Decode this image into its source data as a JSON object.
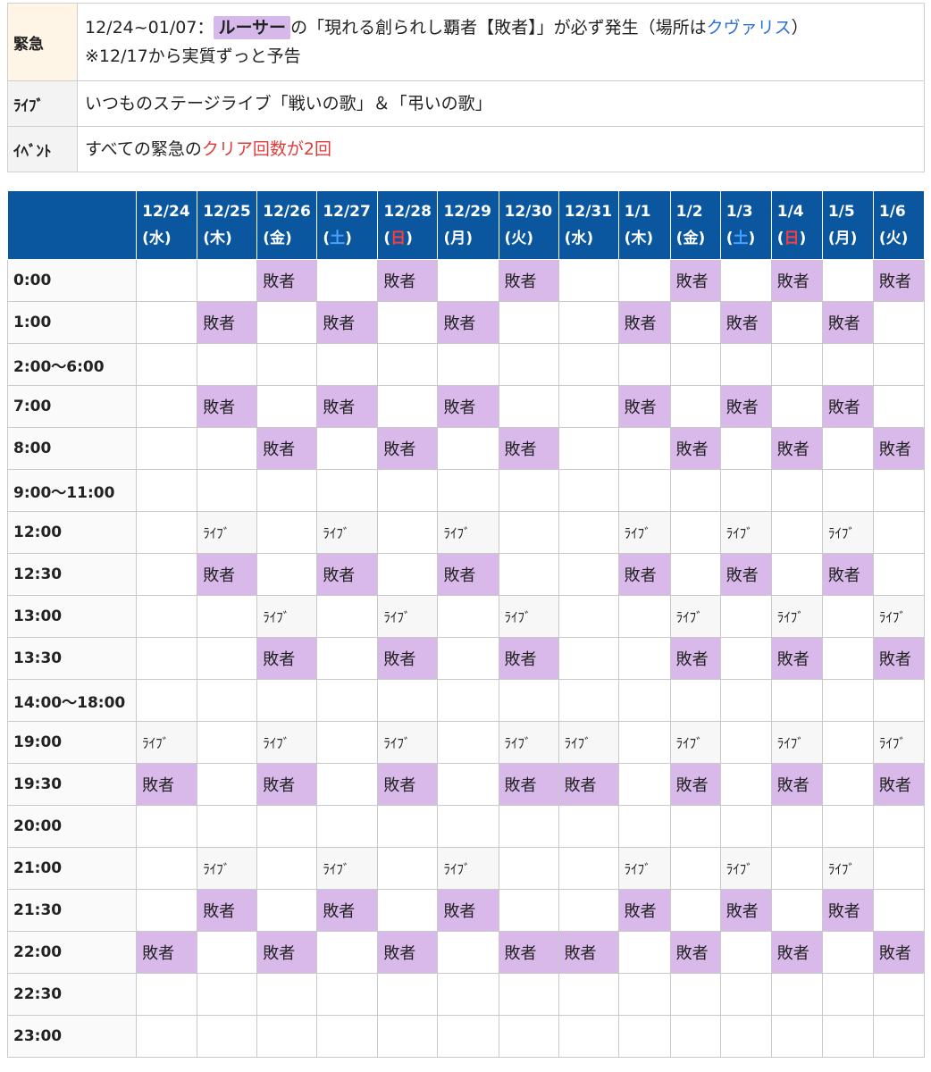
{
  "info": {
    "emergency": {
      "label": "緊急",
      "date_range": "12/24~01/07：",
      "boss": "ルーサー",
      "text_mid": "の「現れる創られし覇者【敗者】」が必ず発生（場所は",
      "location": "クヴァリス",
      "text_end": "）",
      "note": "※12/17から実質ずっと予告"
    },
    "live": {
      "label": "ﾗｲﾌﾞ",
      "text": "いつものステージライブ「戦いの歌」＆「弔いの歌」"
    },
    "event": {
      "label": "ｲﾍﾞﾝﾄ",
      "text_start": "すべての緊急の",
      "text_red": "クリア回数が2回"
    }
  },
  "schedule": {
    "days": [
      {
        "date": "12/24",
        "dow": "水",
        "kind": ""
      },
      {
        "date": "12/25",
        "dow": "木",
        "kind": ""
      },
      {
        "date": "12/26",
        "dow": "金",
        "kind": ""
      },
      {
        "date": "12/27",
        "dow": "土",
        "kind": "sat"
      },
      {
        "date": "12/28",
        "dow": "日",
        "kind": "sun"
      },
      {
        "date": "12/29",
        "dow": "月",
        "kind": ""
      },
      {
        "date": "12/30",
        "dow": "火",
        "kind": ""
      },
      {
        "date": "12/31",
        "dow": "水",
        "kind": ""
      },
      {
        "date": "1/1",
        "dow": "木",
        "kind": ""
      },
      {
        "date": "1/2",
        "dow": "金",
        "kind": ""
      },
      {
        "date": "1/3",
        "dow": "土",
        "kind": "sat"
      },
      {
        "date": "1/4",
        "dow": "日",
        "kind": "sun"
      },
      {
        "date": "1/5",
        "dow": "月",
        "kind": ""
      },
      {
        "date": "1/6",
        "dow": "火",
        "kind": ""
      }
    ],
    "labels": {
      "haisha": "敗者",
      "live": "ﾗｲﾌﾞ"
    },
    "rows": [
      {
        "time": "0:00",
        "cells": [
          "",
          "",
          "h",
          "",
          "h",
          "",
          "h",
          "",
          "",
          "h",
          "",
          "h",
          "",
          "h"
        ]
      },
      {
        "time": "1:00",
        "cells": [
          "",
          "h",
          "",
          "h",
          "",
          "h",
          "",
          "",
          "h",
          "",
          "h",
          "",
          "h",
          ""
        ]
      },
      {
        "time": "2:00〜6:00",
        "cells": [
          "",
          "",
          "",
          "",
          "",
          "",
          "",
          "",
          "",
          "",
          "",
          "",
          "",
          ""
        ]
      },
      {
        "time": "7:00",
        "cells": [
          "",
          "h",
          "",
          "h",
          "",
          "h",
          "",
          "",
          "h",
          "",
          "h",
          "",
          "h",
          ""
        ]
      },
      {
        "time": "8:00",
        "cells": [
          "",
          "",
          "h",
          "",
          "h",
          "",
          "h",
          "",
          "",
          "h",
          "",
          "h",
          "",
          "h"
        ]
      },
      {
        "time": "9:00〜11:00",
        "cells": [
          "",
          "",
          "",
          "",
          "",
          "",
          "",
          "",
          "",
          "",
          "",
          "",
          "",
          ""
        ]
      },
      {
        "time": "12:00",
        "cells": [
          "",
          "l",
          "",
          "l",
          "",
          "l",
          "",
          "",
          "l",
          "",
          "l",
          "",
          "l",
          ""
        ]
      },
      {
        "time": "12:30",
        "cells": [
          "",
          "h",
          "",
          "h",
          "",
          "h",
          "",
          "",
          "h",
          "",
          "h",
          "",
          "h",
          ""
        ]
      },
      {
        "time": "13:00",
        "cells": [
          "",
          "",
          "l",
          "",
          "l",
          "",
          "l",
          "",
          "",
          "l",
          "",
          "l",
          "",
          "l"
        ]
      },
      {
        "time": "13:30",
        "cells": [
          "",
          "",
          "h",
          "",
          "h",
          "",
          "h",
          "",
          "",
          "h",
          "",
          "h",
          "",
          "h"
        ]
      },
      {
        "time": "14:00〜18:00",
        "cells": [
          "",
          "",
          "",
          "",
          "",
          "",
          "",
          "",
          "",
          "",
          "",
          "",
          "",
          ""
        ]
      },
      {
        "time": "19:00",
        "cells": [
          "l",
          "",
          "l",
          "",
          "l",
          "",
          "l",
          "l",
          "",
          "l",
          "",
          "l",
          "",
          "l"
        ]
      },
      {
        "time": "19:30",
        "cells": [
          "h",
          "",
          "h",
          "",
          "h",
          "",
          "h",
          "h",
          "",
          "h",
          "",
          "h",
          "",
          "h"
        ]
      },
      {
        "time": "20:00",
        "cells": [
          "",
          "",
          "",
          "",
          "",
          "",
          "",
          "",
          "",
          "",
          "",
          "",
          "",
          ""
        ]
      },
      {
        "time": "21:00",
        "cells": [
          "",
          "l",
          "",
          "l",
          "",
          "l",
          "",
          "",
          "l",
          "",
          "l",
          "",
          "l",
          ""
        ]
      },
      {
        "time": "21:30",
        "cells": [
          "",
          "h",
          "",
          "h",
          "",
          "h",
          "",
          "",
          "h",
          "",
          "h",
          "",
          "h",
          ""
        ]
      },
      {
        "time": "22:00",
        "cells": [
          "h",
          "",
          "h",
          "",
          "h",
          "",
          "h",
          "h",
          "",
          "h",
          "",
          "h",
          "",
          "h"
        ]
      },
      {
        "time": "22:30",
        "cells": [
          "",
          "",
          "",
          "",
          "",
          "",
          "",
          "",
          "",
          "",
          "",
          "",
          "",
          ""
        ]
      },
      {
        "time": "23:00",
        "cells": [
          "",
          "",
          "",
          "",
          "",
          "",
          "",
          "",
          "",
          "",
          "",
          "",
          "",
          ""
        ]
      }
    ]
  }
}
